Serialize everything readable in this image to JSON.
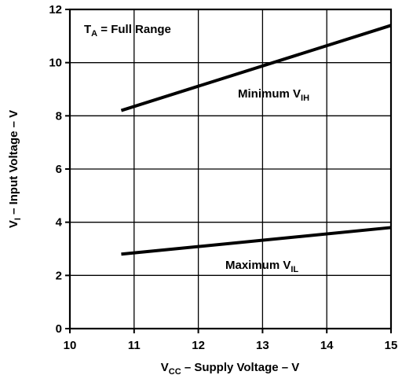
{
  "chart_data": {
    "type": "line",
    "title": "",
    "xlabel": {
      "main": "V",
      "sub": "CC",
      "rest": " – Supply Voltage – V"
    },
    "ylabel": {
      "main": "V",
      "sub": "I",
      "rest": " – Input Voltage – V"
    },
    "xlim": [
      10,
      15
    ],
    "ylim": [
      0,
      12
    ],
    "xticks": [
      10,
      11,
      12,
      13,
      14,
      15
    ],
    "yticks": [
      0,
      2,
      4,
      6,
      8,
      10,
      12
    ],
    "grid": true,
    "series": [
      {
        "name": {
          "main": "Minimum V",
          "sub": "IH"
        },
        "x": [
          10.8,
          15
        ],
        "y": [
          8.2,
          11.4
        ]
      },
      {
        "name": {
          "main": "Maximum V",
          "sub": "IL"
        },
        "x": [
          10.8,
          15
        ],
        "y": [
          2.8,
          3.8
        ]
      }
    ],
    "annotations": [
      {
        "main": "T",
        "sub": "A",
        "rest": " = Full Range"
      }
    ]
  }
}
